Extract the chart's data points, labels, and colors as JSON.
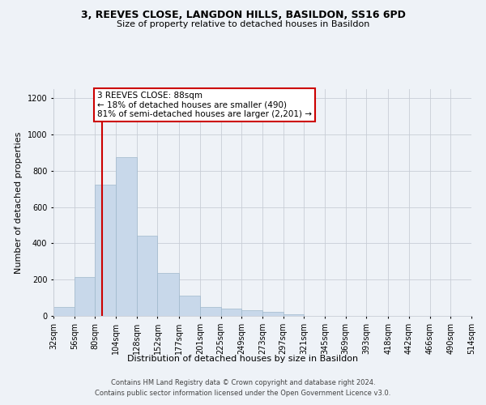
{
  "title_line1": "3, REEVES CLOSE, LANGDON HILLS, BASILDON, SS16 6PD",
  "title_line2": "Size of property relative to detached houses in Basildon",
  "xlabel": "Distribution of detached houses by size in Basildon",
  "ylabel": "Number of detached properties",
  "footer_line1": "Contains HM Land Registry data © Crown copyright and database right 2024.",
  "footer_line2": "Contains public sector information licensed under the Open Government Licence v3.0.",
  "annotation_title": "3 REEVES CLOSE: 88sqm",
  "annotation_line1": "← 18% of detached houses are smaller (490)",
  "annotation_line2": "81% of semi-detached houses are larger (2,201) →",
  "bar_color": "#c8d8ea",
  "bar_edge_color": "#a0b8cc",
  "redline_color": "#cc0000",
  "redline_x": 88,
  "bin_edges": [
    32,
    56,
    80,
    104,
    128,
    152,
    177,
    201,
    225,
    249,
    273,
    297,
    321,
    345,
    369,
    393,
    418,
    442,
    466,
    490,
    514
  ],
  "bar_heights": [
    50,
    215,
    725,
    875,
    440,
    235,
    110,
    50,
    42,
    32,
    22,
    10,
    0,
    0,
    0,
    0,
    0,
    0,
    0,
    0
  ],
  "ylim": [
    0,
    1250
  ],
  "yticks": [
    0,
    200,
    400,
    600,
    800,
    1000,
    1200
  ],
  "background_color": "#eef2f7",
  "annotation_box_facecolor": "#ffffff",
  "annotation_box_edgecolor": "#cc0000",
  "grid_color": "#c8cdd6",
  "title_fontsize": 9,
  "subtitle_fontsize": 8,
  "ylabel_fontsize": 8,
  "xlabel_fontsize": 8,
  "tick_fontsize": 7,
  "footer_fontsize": 6,
  "annotation_fontsize": 7.5
}
